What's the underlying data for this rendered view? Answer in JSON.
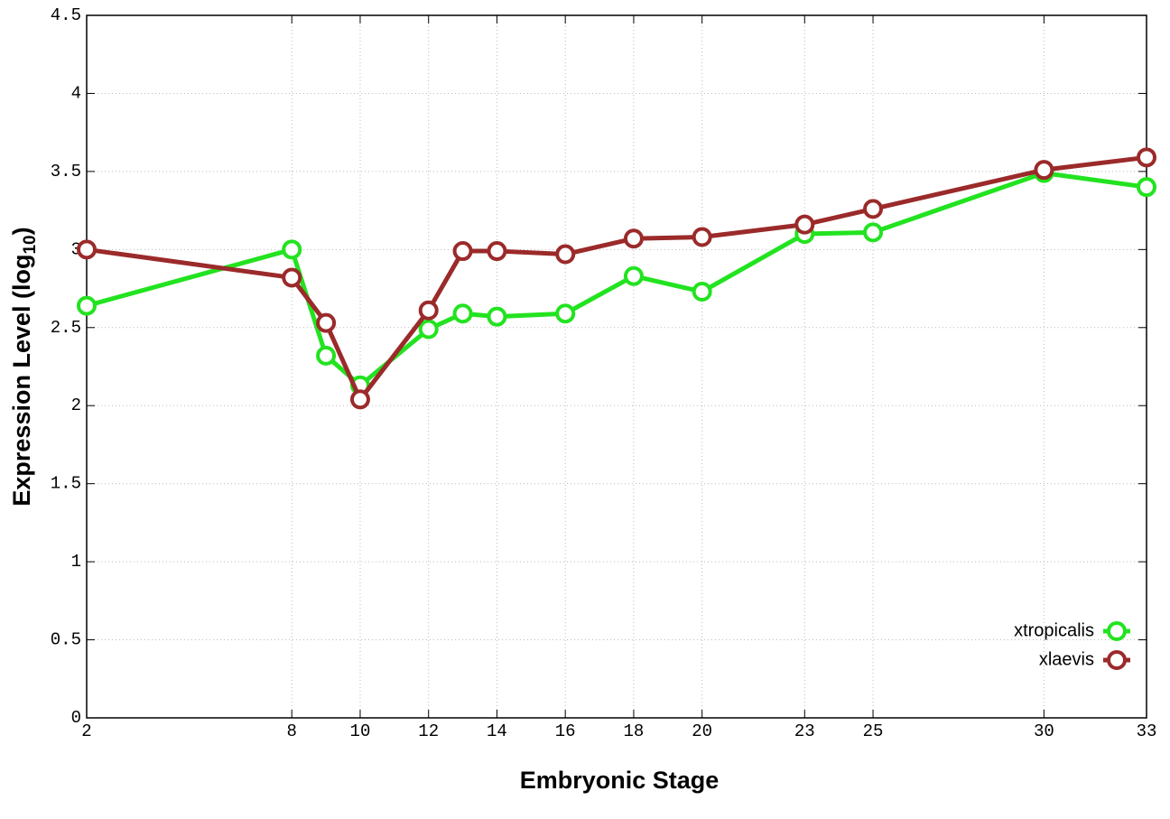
{
  "chart_data": {
    "type": "line",
    "x_label": "Embryonic Stage",
    "y_label": {
      "text": "Expression Level (log",
      "subscript": "10",
      "suffix": ")"
    },
    "x": [
      2,
      8,
      9,
      10,
      12,
      13,
      14,
      16,
      18,
      20,
      23,
      25,
      30,
      33
    ],
    "series": [
      {
        "name": "xtropicalis",
        "color": "#22e31f",
        "values": [
          2.64,
          3.0,
          2.32,
          2.13,
          2.49,
          2.59,
          2.57,
          2.59,
          2.83,
          2.73,
          3.1,
          3.11,
          3.49,
          3.4
        ]
      },
      {
        "name": "xlaevis",
        "color": "#9b2a2a",
        "values": [
          3.0,
          2.82,
          2.53,
          2.04,
          2.61,
          2.99,
          2.99,
          2.97,
          3.07,
          3.08,
          3.16,
          3.26,
          3.51,
          3.59
        ]
      }
    ],
    "xlim": [
      2,
      33
    ],
    "xticks": [
      2,
      8,
      10,
      12,
      14,
      16,
      18,
      20,
      23,
      25,
      30,
      33
    ],
    "ylim": [
      0,
      4.5
    ],
    "yticks": [
      0,
      0.5,
      1,
      1.5,
      2,
      2.5,
      3,
      3.5,
      4,
      4.5
    ],
    "grid": true,
    "legend": "bottom right"
  }
}
